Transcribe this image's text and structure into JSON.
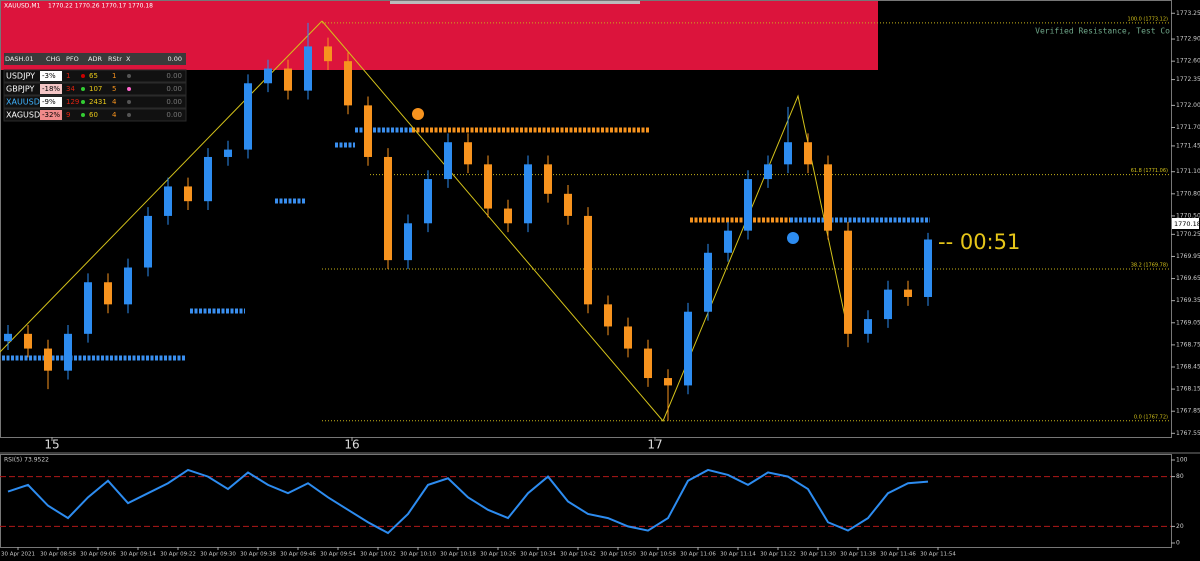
{
  "header": {
    "symbol": "XAUUSD,M1",
    "ohlc": "1770.22 1770.26 1770.17 1770.18"
  },
  "zone_label": "Verified Resistance, Test Co",
  "dashboard": {
    "columns": [
      "DASH.01",
      "CHG",
      "PFO",
      "ADR",
      "RStr",
      "X",
      "0.00"
    ],
    "rows": [
      [
        "USDJPY",
        "-3%",
        "1",
        "65",
        "1",
        "0.00"
      ],
      [
        "GBPJPY",
        "-18%",
        "34",
        "107",
        "5",
        "0.00"
      ],
      [
        "XAUUSD",
        "-9%",
        "129",
        "2431",
        "4",
        "0.00"
      ],
      [
        "XAGUSD",
        "-32%",
        "9",
        "60",
        "4",
        "0.00"
      ]
    ]
  },
  "fib_levels": [
    {
      "label": "100.0 (1773.12)",
      "price": 1773.12
    },
    {
      "label": "61.8 (1771.06)",
      "price": 1771.06
    },
    {
      "label": "38.2 (1769.78)",
      "price": 1769.78
    },
    {
      "label": "0.0 (1767.72)",
      "price": 1767.72
    }
  ],
  "countdown": "-- 00:51",
  "price_tag": "1770.18",
  "chart_data": [
    {
      "type": "candlestick",
      "up_color": "#2d8cf0",
      "down_color": "#f7931e",
      "open": [
        1768.8,
        1768.9,
        1768.7,
        1768.4,
        1768.9,
        1769.6,
        1769.3,
        1769.8,
        1770.5,
        1770.9,
        1770.7,
        1771.3,
        1771.4,
        1772.3,
        1772.5,
        1772.2,
        1772.8,
        1772.6,
        1772.0,
        1771.3,
        1769.9,
        1770.4,
        1771.0,
        1771.5,
        1771.2,
        1770.6,
        1770.4,
        1771.2,
        1770.8,
        1770.5,
        1769.3,
        1769.0,
        1768.7,
        1768.3,
        1768.2,
        1769.2,
        1770.0,
        1770.3,
        1771.0,
        1771.2,
        1771.5,
        1771.2,
        1770.3,
        1768.9,
        1769.1,
        1769.5,
        1769.4
      ],
      "high": [
        1769.02,
        1769.02,
        1768.82,
        1769.02,
        1769.72,
        1769.72,
        1769.92,
        1770.62,
        1771.02,
        1771.02,
        1771.42,
        1771.52,
        1772.42,
        1772.62,
        1772.62,
        1773.12,
        1772.92,
        1772.72,
        1772.12,
        1771.42,
        1770.52,
        1771.12,
        1771.62,
        1771.62,
        1771.32,
        1770.72,
        1771.32,
        1771.32,
        1770.92,
        1770.62,
        1769.42,
        1769.12,
        1768.82,
        1768.42,
        1769.32,
        1770.12,
        1770.42,
        1771.12,
        1771.32,
        1771.98,
        1771.62,
        1771.32,
        1770.42,
        1769.22,
        1769.62,
        1769.62,
        1770.27
      ],
      "low": [
        1768.68,
        1768.58,
        1768.15,
        1768.28,
        1768.78,
        1769.18,
        1769.18,
        1769.68,
        1770.38,
        1770.58,
        1770.58,
        1771.18,
        1771.28,
        1772.18,
        1772.08,
        1772.08,
        1772.48,
        1771.88,
        1771.18,
        1769.78,
        1769.78,
        1770.28,
        1770.88,
        1771.08,
        1770.48,
        1770.28,
        1770.28,
        1770.68,
        1770.38,
        1769.18,
        1768.88,
        1768.58,
        1768.18,
        1767.72,
        1768.08,
        1769.08,
        1769.88,
        1770.18,
        1770.88,
        1771.08,
        1771.08,
        1770.18,
        1768.72,
        1768.78,
        1768.98,
        1769.28,
        1769.28
      ],
      "close": [
        1768.9,
        1768.7,
        1768.4,
        1768.9,
        1769.6,
        1769.3,
        1769.8,
        1770.5,
        1770.9,
        1770.7,
        1771.3,
        1771.4,
        1772.3,
        1772.5,
        1772.2,
        1772.8,
        1772.6,
        1772.0,
        1771.3,
        1769.9,
        1770.4,
        1771.0,
        1771.5,
        1771.2,
        1770.6,
        1770.4,
        1771.2,
        1770.8,
        1770.5,
        1769.3,
        1769.0,
        1768.7,
        1768.3,
        1768.2,
        1769.2,
        1770.0,
        1770.3,
        1771.0,
        1771.2,
        1771.5,
        1771.2,
        1770.3,
        1768.9,
        1769.1,
        1769.5,
        1769.4,
        1770.18
      ],
      "ylim": [
        1767.5,
        1773.43
      ],
      "yticks": [
        1767.55,
        1767.85,
        1768.15,
        1768.45,
        1768.75,
        1769.05,
        1769.35,
        1769.65,
        1769.95,
        1770.25,
        {
          "value": 1770.5,
          "label": "1770.50"
        },
        {
          "value": 1770.8,
          "label": "1770.80"
        },
        {
          "value": 1771.1,
          "label": "1771.10"
        },
        1771.45,
        {
          "value": 1771.7,
          "label": "1771.70"
        },
        {
          "value": 1772,
          "label": "1772.00"
        },
        1772.35,
        {
          "value": 1772.6,
          "label": "1772.60"
        },
        {
          "value": 1772.9,
          "label": "1772.90"
        },
        1773.25
      ],
      "xticks": [
        {
          "value": 2.2,
          "label": "15"
        },
        {
          "value": 17.2,
          "label": "16"
        },
        {
          "value": 32.35,
          "label": "17"
        }
      ]
    },
    {
      "type": "line",
      "title": "RSI(5) 73.9522",
      "color": "#2d8cf0",
      "values": [
        62,
        70,
        45,
        30,
        55,
        75,
        48,
        60,
        72,
        88,
        80,
        65,
        85,
        70,
        60,
        72,
        55,
        40,
        25,
        12,
        35,
        70,
        78,
        55,
        40,
        30,
        60,
        80,
        50,
        35,
        30,
        20,
        15,
        30,
        75,
        88,
        82,
        70,
        85,
        80,
        65,
        25,
        15,
        30,
        60,
        72,
        74
      ],
      "levels": [
        20,
        80
      ],
      "ylim": [
        0,
        100
      ],
      "yticks": [
        0,
        20,
        80,
        100
      ],
      "xticks": [
        {
          "value": 0.5,
          "label": "30 Apr 2021"
        },
        {
          "value": 2.5,
          "label": "30 Apr 08:58"
        },
        {
          "value": 4.5,
          "label": "30 Apr 09:06"
        },
        {
          "value": 6.5,
          "label": "30 Apr 09:14"
        },
        {
          "value": 8.5,
          "label": "30 Apr 09:22"
        },
        {
          "value": 10.5,
          "label": "30 Apr 09:30"
        },
        {
          "value": 12.5,
          "label": "30 Apr 09:38"
        },
        {
          "value": 14.5,
          "label": "30 Apr 09:46"
        },
        {
          "value": 16.5,
          "label": "30 Apr 09:54"
        },
        {
          "value": 18.5,
          "label": "30 Apr 10:02"
        },
        {
          "value": 20.5,
          "label": "30 Apr 10:10"
        },
        {
          "value": 22.5,
          "label": "30 Apr 10:18"
        },
        {
          "value": 24.5,
          "label": "30 Apr 10:26"
        },
        {
          "value": 26.5,
          "label": "30 Apr 10:34"
        },
        {
          "value": 28.5,
          "label": "30 Apr 10:42"
        },
        {
          "value": 30.5,
          "label": "30 Apr 10:50"
        },
        {
          "value": 32.5,
          "label": "30 Apr 10:58"
        },
        {
          "value": 34.5,
          "label": "30 Apr 11:06"
        },
        {
          "value": 36.5,
          "label": "30 Apr 11:14"
        },
        {
          "value": 38.5,
          "label": "30 Apr 11:22"
        },
        {
          "value": 40.5,
          "label": "30 Apr 11:30"
        },
        {
          "value": 42.5,
          "label": "30 Apr 11:38"
        },
        {
          "value": 44.5,
          "label": "30 Apr 11:46"
        },
        {
          "value": 46.5,
          "label": "30 Apr 11:54"
        }
      ]
    }
  ]
}
